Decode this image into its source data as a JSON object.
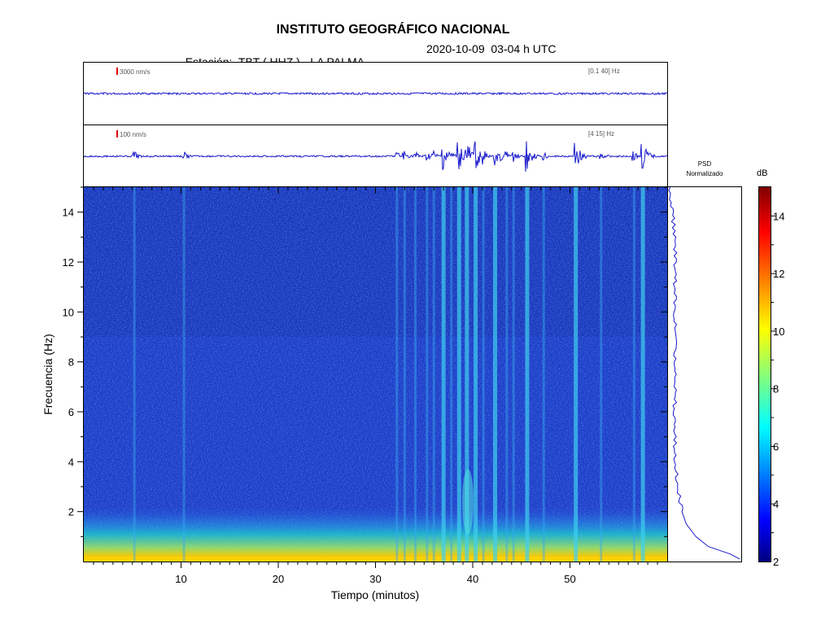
{
  "header": {
    "title": "INSTITUTO GEOGRÁFICO NACIONAL",
    "station": "Estación:  TBT ( HHZ ) - LA PALMA",
    "datetime": "2020-10-09  03-04 h UTC"
  },
  "traces": [
    {
      "scale": "3000 nm/s",
      "band": "[0.1 40] Hz"
    },
    {
      "scale": "100 nm/s",
      "band": "[4 15] Hz"
    }
  ],
  "psd": {
    "line1": "PSD",
    "line2": "Normalizado"
  },
  "colorbar": {
    "unit": "dB",
    "ticks": [
      "2",
      "4",
      "6",
      "8",
      "10",
      "12",
      "14"
    ],
    "min": 2,
    "max": 15
  },
  "colors": {
    "trace": "#1a1acd",
    "background_blue": "#1a3cc8",
    "scale_bar": "#dd0000"
  },
  "chart_data": {
    "type": "heatmap",
    "title": "",
    "xlabel": "Tiempo (minutos)",
    "ylabel": "Frecuencia (Hz)",
    "xlim": [
      0,
      60
    ],
    "ylim": [
      0,
      15
    ],
    "xticks": [
      "10",
      "20",
      "30",
      "40",
      "50"
    ],
    "yticks": [
      "2",
      "4",
      "6",
      "8",
      "10",
      "12",
      "14"
    ],
    "event_times_min": [
      5.2,
      10.3,
      32.2,
      33.0,
      34.1,
      35.3,
      36.0,
      37.0,
      37.8,
      38.6,
      39.4,
      40.3,
      41.1,
      42.3,
      43.5,
      44.2,
      45.6,
      47.3,
      50.6,
      53.2,
      56.6,
      57.5
    ],
    "strong_events_min": [
      37.0,
      38.6,
      39.4,
      40.3,
      42.3,
      45.6,
      50.6,
      57.5
    ],
    "psd_profile": [
      [
        0.1,
        0.98
      ],
      [
        0.3,
        0.85
      ],
      [
        0.6,
        0.55
      ],
      [
        1.0,
        0.38
      ],
      [
        1.5,
        0.25
      ],
      [
        2.0,
        0.19
      ],
      [
        3.0,
        0.13
      ],
      [
        4.0,
        0.1
      ],
      [
        6.0,
        0.09
      ],
      [
        8.0,
        0.1
      ],
      [
        10.0,
        0.09
      ],
      [
        12.0,
        0.1
      ],
      [
        13.0,
        0.09
      ],
      [
        14.0,
        0.06
      ],
      [
        15.0,
        0.03
      ]
    ]
  }
}
